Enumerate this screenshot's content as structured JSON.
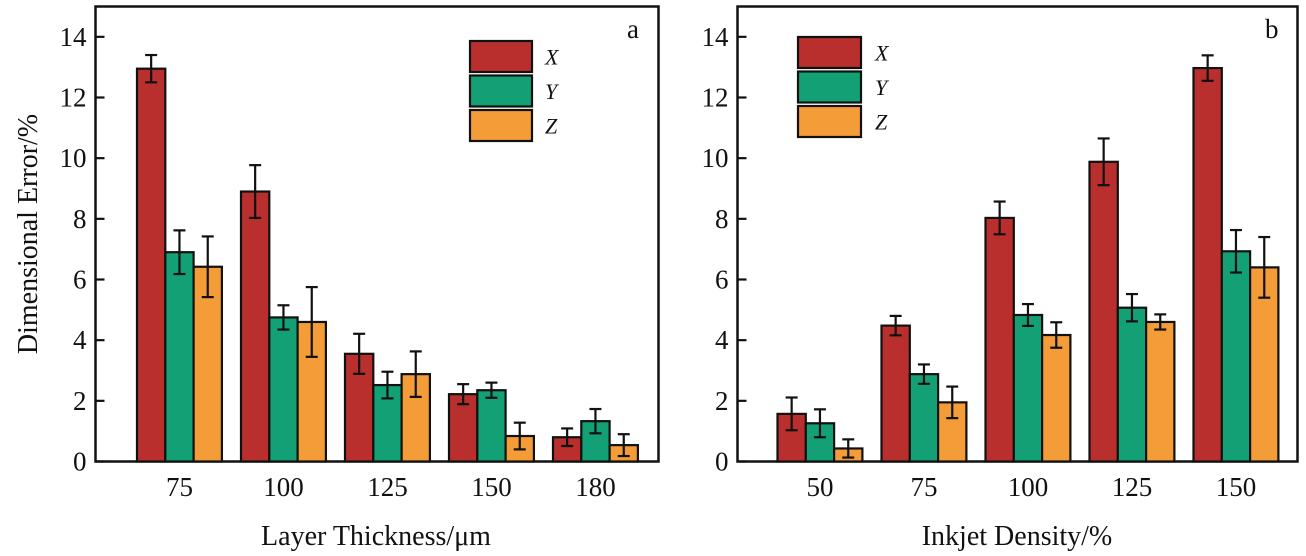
{
  "colors": {
    "X": "#b92f2d",
    "Y": "#14a075",
    "Z": "#f39c38",
    "axis": "#111111"
  },
  "chart_data": [
    {
      "type": "bar",
      "panel_label": "a",
      "title": "",
      "xlabel": "Layer Thickness/μm",
      "ylabel": "Dimensional Error/%",
      "ylim": [
        0,
        15
      ],
      "yticks": [
        "0",
        "2",
        "4",
        "6",
        "8",
        "10",
        "12",
        "14"
      ],
      "ytick_values": [
        0,
        2,
        4,
        6,
        8,
        10,
        12,
        14
      ],
      "categories": [
        "75",
        "100",
        "125",
        "150",
        "180"
      ],
      "legend_position": "top-right",
      "series": [
        {
          "name": "X",
          "values": [
            12.95,
            8.9,
            3.55,
            2.22,
            0.8
          ],
          "errors": [
            0.45,
            0.87,
            0.66,
            0.33,
            0.29
          ]
        },
        {
          "name": "Y",
          "values": [
            6.9,
            4.75,
            2.52,
            2.35,
            1.33
          ],
          "errors": [
            0.72,
            0.4,
            0.44,
            0.25,
            0.4
          ]
        },
        {
          "name": "Z",
          "values": [
            6.42,
            4.6,
            2.88,
            0.84,
            0.54
          ],
          "errors": [
            1.0,
            1.15,
            0.75,
            0.44,
            0.36
          ]
        }
      ]
    },
    {
      "type": "bar",
      "panel_label": "b",
      "title": "",
      "xlabel": "Inkjet Density/%",
      "ylabel": "",
      "ylim": [
        0,
        15
      ],
      "yticks": [
        "0",
        "2",
        "4",
        "6",
        "8",
        "10",
        "12",
        "14"
      ],
      "ytick_values": [
        0,
        2,
        4,
        6,
        8,
        10,
        12,
        14
      ],
      "categories": [
        "50",
        "75",
        "100",
        "125",
        "150"
      ],
      "legend_position": "top-left",
      "series": [
        {
          "name": "X",
          "values": [
            1.57,
            4.48,
            8.03,
            9.88,
            12.97
          ],
          "errors": [
            0.54,
            0.32,
            0.54,
            0.77,
            0.42
          ]
        },
        {
          "name": "Y",
          "values": [
            1.26,
            2.88,
            4.83,
            5.07,
            6.93
          ],
          "errors": [
            0.46,
            0.32,
            0.36,
            0.45,
            0.7
          ]
        },
        {
          "name": "Z",
          "values": [
            0.43,
            1.95,
            4.17,
            4.6,
            6.4
          ],
          "errors": [
            0.3,
            0.52,
            0.42,
            0.25,
            1.0
          ]
        }
      ]
    }
  ]
}
